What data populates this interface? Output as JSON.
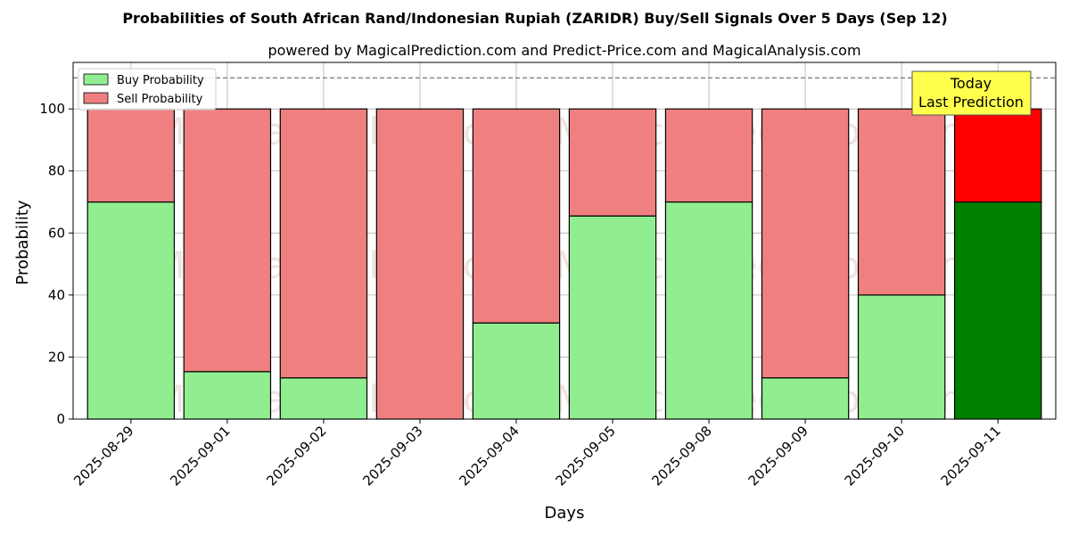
{
  "chart_data": {
    "type": "bar",
    "stacked": true,
    "title": "Probabilities of South African Rand/Indonesian Rupiah (ZARIDR) Buy/Sell Signals Over 5 Days (Sep 12)",
    "subtitle": "powered by MagicalPrediction.com and Predict-Price.com and MagicalAnalysis.com",
    "xlabel": "Days",
    "ylabel": "Probability",
    "ylim": [
      0,
      115
    ],
    "yticks": [
      0,
      20,
      40,
      60,
      80,
      100
    ],
    "grid": true,
    "legend_position": "top-left",
    "reference_line": 110,
    "categories": [
      "2025-08-29",
      "2025-09-01",
      "2025-09-02",
      "2025-09-03",
      "2025-09-04",
      "2025-09-05",
      "2025-09-08",
      "2025-09-09",
      "2025-09-10",
      "2025-09-11"
    ],
    "series": [
      {
        "name": "Buy Probability",
        "color": "#90ee90",
        "highlight_color": "#008000",
        "values": [
          70,
          15.3,
          13.3,
          0,
          31,
          65.5,
          70,
          13.3,
          40,
          70
        ]
      },
      {
        "name": "Sell Probability",
        "color": "#f08080",
        "highlight_color": "#ff0000",
        "values": [
          30,
          84.7,
          86.7,
          100,
          69,
          34.5,
          30,
          86.7,
          60,
          30
        ]
      }
    ],
    "highlight_index": 9,
    "annotation": {
      "line1": "Today",
      "line2": "Last Prediction",
      "color": "#ffff4d"
    },
    "watermark": "MagicalAnalysis.com   MagicalPrediction.com"
  }
}
